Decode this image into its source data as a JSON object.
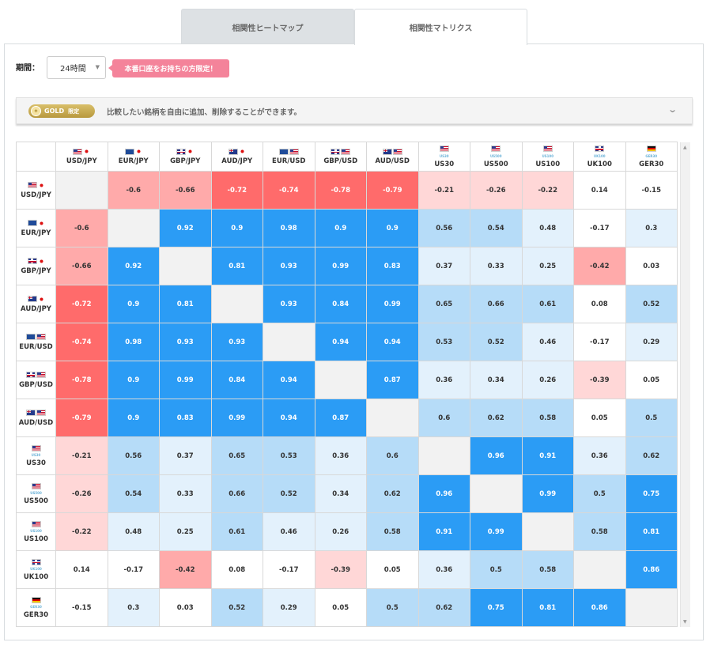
{
  "tabs": [
    {
      "label": "相関性ヒートマップ",
      "active": false
    },
    {
      "label": "相関性マトリクス",
      "active": true
    }
  ],
  "period": {
    "label": "期間：",
    "selected": "24時間"
  },
  "promo": {
    "text": "本番口座をお持ちの方限定！"
  },
  "accordion": {
    "badge_text": "GOLD",
    "badge_limited": "限定",
    "description": "比較したい銘柄を自由に追加、削除することができます。",
    "icon": "chevron-down-icon"
  },
  "colors": {
    "strong_positive": "#2b9cf5",
    "mild_positive": "#b6dcf8",
    "weak_positive": "#e3f1fc",
    "neutral": "#ffffff",
    "weak_negative": "#ffd7d7",
    "mild_negative": "#ffaaaa",
    "strong_negative": "#ff6b6b",
    "diagonal": "#f2f2f2"
  },
  "symbols": [
    {
      "label": "USD/JPY",
      "flags": [
        "us",
        "jp"
      ],
      "index_label": ""
    },
    {
      "label": "EUR/JPY",
      "flags": [
        "eu",
        "jp"
      ],
      "index_label": ""
    },
    {
      "label": "GBP/JPY",
      "flags": [
        "gb",
        "jp"
      ],
      "index_label": ""
    },
    {
      "label": "AUD/JPY",
      "flags": [
        "au",
        "jp"
      ],
      "index_label": ""
    },
    {
      "label": "EUR/USD",
      "flags": [
        "eu",
        "us"
      ],
      "index_label": ""
    },
    {
      "label": "GBP/USD",
      "flags": [
        "gb",
        "us"
      ],
      "index_label": ""
    },
    {
      "label": "AUD/USD",
      "flags": [
        "au",
        "us"
      ],
      "index_label": ""
    },
    {
      "label": "US30",
      "flags": [
        "us"
      ],
      "index_label": "US30"
    },
    {
      "label": "US500",
      "flags": [
        "us"
      ],
      "index_label": "US500"
    },
    {
      "label": "US100",
      "flags": [
        "us"
      ],
      "index_label": "US100"
    },
    {
      "label": "UK100",
      "flags": [
        "gb"
      ],
      "index_label": "UK100"
    },
    {
      "label": "GER30",
      "flags": [
        "de"
      ],
      "index_label": "GER30"
    }
  ],
  "matrix": [
    [
      "",
      "-0.6",
      "-0.66",
      "-0.72",
      "-0.74",
      "-0.78",
      "-0.79",
      "-0.21",
      "-0.26",
      "-0.22",
      "0.14",
      "-0.15"
    ],
    [
      "-0.6",
      "",
      "0.92",
      "0.9",
      "0.98",
      "0.9",
      "0.9",
      "0.56",
      "0.54",
      "0.48",
      "-0.17",
      "0.3"
    ],
    [
      "-0.66",
      "0.92",
      "",
      "0.81",
      "0.93",
      "0.99",
      "0.83",
      "0.37",
      "0.33",
      "0.25",
      "-0.42",
      "0.03"
    ],
    [
      "-0.72",
      "0.9",
      "0.81",
      "",
      "0.93",
      "0.84",
      "0.99",
      "0.65",
      "0.66",
      "0.61",
      "0.08",
      "0.52"
    ],
    [
      "-0.74",
      "0.98",
      "0.93",
      "0.93",
      "",
      "0.94",
      "0.94",
      "0.53",
      "0.52",
      "0.46",
      "-0.17",
      "0.29"
    ],
    [
      "-0.78",
      "0.9",
      "0.99",
      "0.84",
      "0.94",
      "",
      "0.87",
      "0.36",
      "0.34",
      "0.26",
      "-0.39",
      "0.05"
    ],
    [
      "-0.79",
      "0.9",
      "0.83",
      "0.99",
      "0.94",
      "0.87",
      "",
      "0.6",
      "0.62",
      "0.58",
      "0.05",
      "0.5"
    ],
    [
      "-0.21",
      "0.56",
      "0.37",
      "0.65",
      "0.53",
      "0.36",
      "0.6",
      "",
      "0.96",
      "0.91",
      "0.36",
      "0.62"
    ],
    [
      "-0.26",
      "0.54",
      "0.33",
      "0.66",
      "0.52",
      "0.34",
      "0.62",
      "0.96",
      "",
      "0.99",
      "0.5",
      "0.75"
    ],
    [
      "-0.22",
      "0.48",
      "0.25",
      "0.61",
      "0.46",
      "0.26",
      "0.58",
      "0.91",
      "0.99",
      "",
      "0.58",
      "0.81"
    ],
    [
      "0.14",
      "-0.17",
      "-0.42",
      "0.08",
      "-0.17",
      "-0.39",
      "0.05",
      "0.36",
      "0.5",
      "0.58",
      "",
      "0.86"
    ],
    [
      "-0.15",
      "0.3",
      "0.03",
      "0.52",
      "0.29",
      "0.05",
      "0.5",
      "0.62",
      "0.75",
      "0.81",
      "0.86",
      ""
    ]
  ]
}
